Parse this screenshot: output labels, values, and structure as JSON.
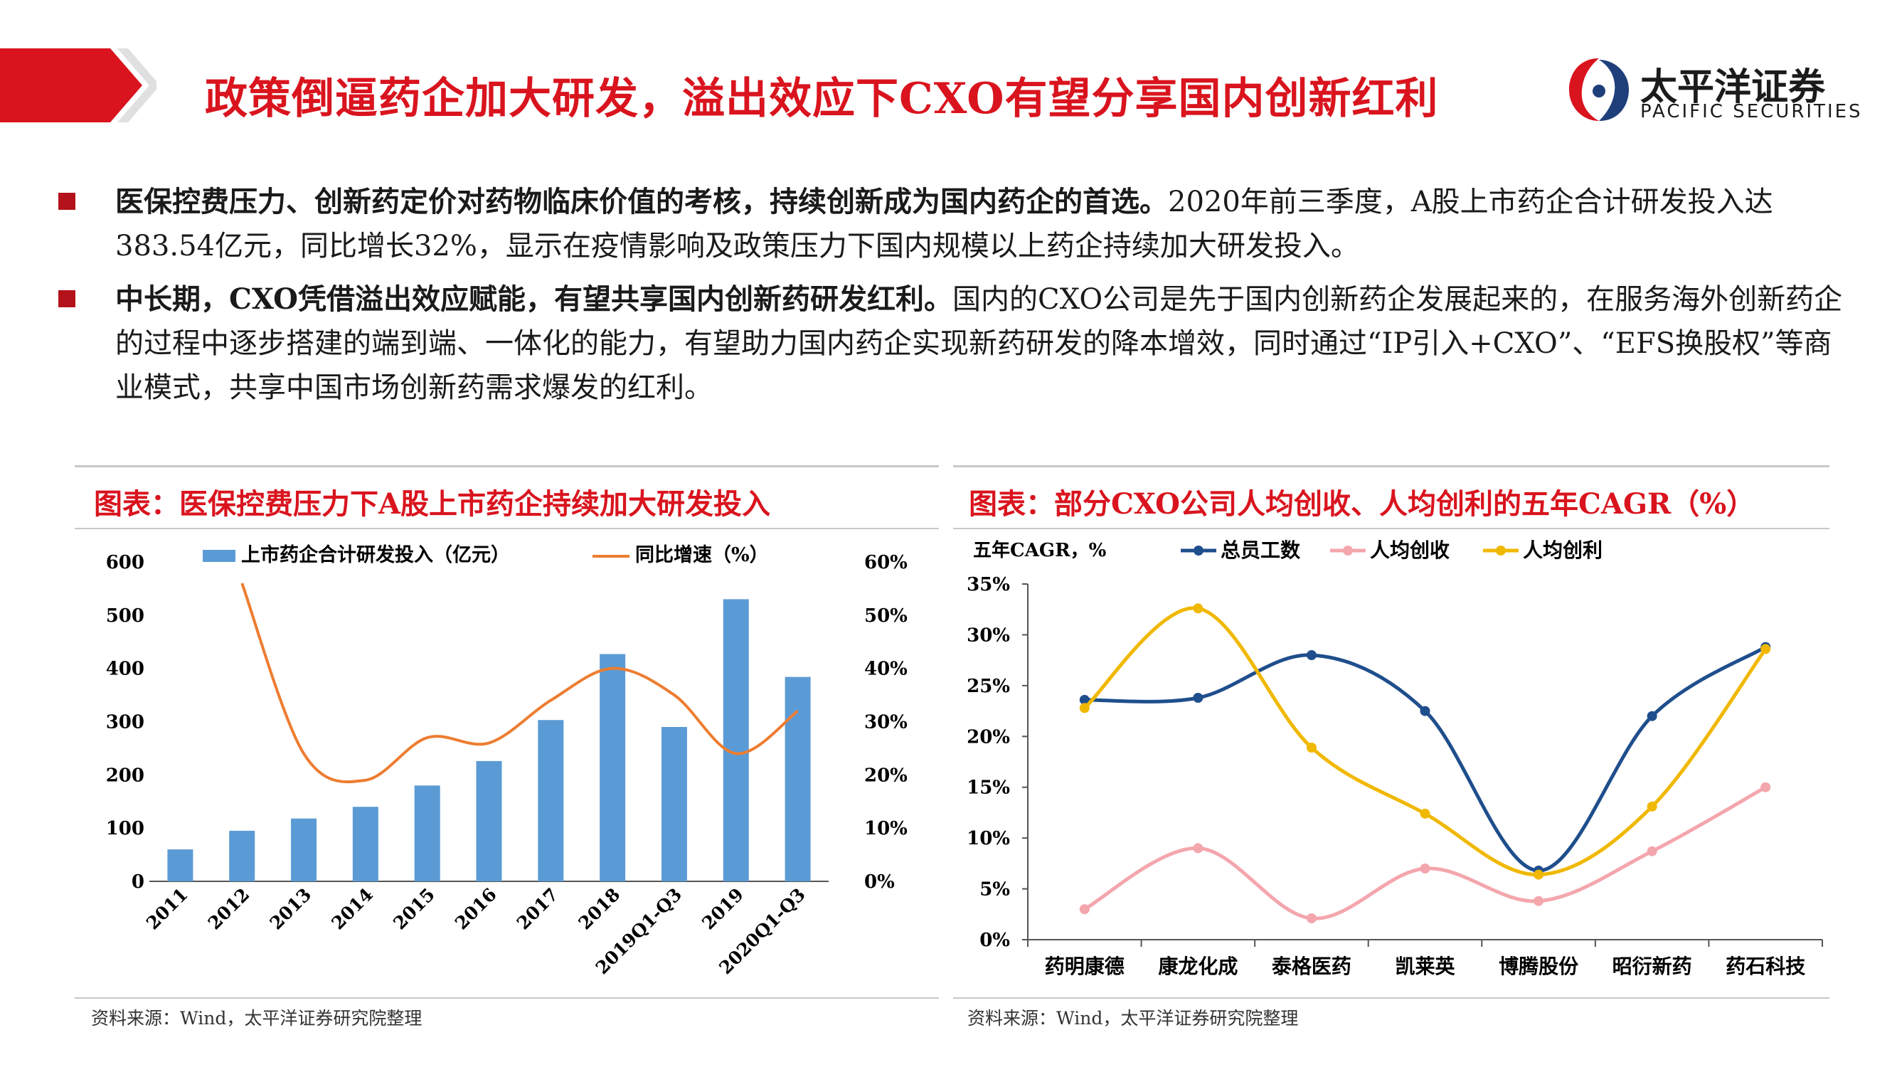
{
  "header": {
    "title": "政策倒逼药企加大研发，溢出效应下CXO有望分享国内创新红利",
    "logo_cn": "太平洋证券",
    "logo_en": "PACIFIC SECURITIES",
    "accent": "#d9141e"
  },
  "bullets": [
    {
      "bold": "医保控费压力、创新药定价对药物临床价值的考核，持续创新成为国内药企的首选。",
      "text": "2020年前三季度，A股上市药企合计研发投入达383.54亿元，同比增长32%，显示在疫情影响及政策压力下国内规模以上药企持续加大研发投入。"
    },
    {
      "bold": "中长期，CXO凭借溢出效应赋能，有望共享国内创新药研发红利。",
      "text": "国内的CXO公司是先于国内创新药企发展起来的，在服务海外创新药企的过程中逐步搭建的端到端、一体化的能力，有望助力国内药企实现新药研发的降本增效，同时通过“IP引入+CXO”、“EFS换股权”等商业模式，共享中国市场创新药需求爆发的红利。"
    }
  ],
  "left_chart": {
    "title": "图表：医保控费压力下A股上市药企持续加大研发投入",
    "source": "资料来源：Wind，太平洋证券研究院整理"
  },
  "right_chart": {
    "title": "图表：部分CXO公司人均创收、人均创利的五年CAGR（%）",
    "source": "资料来源：Wind，太平洋证券研究院整理"
  },
  "chart_data": [
    {
      "type": "bar",
      "categories": [
        "2011",
        "2012",
        "2013",
        "2014",
        "2015",
        "2016",
        "2017",
        "2018",
        "2019Q1-Q3",
        "2019",
        "2020Q1-Q3"
      ],
      "series": [
        {
          "name": "上市药企合计研发投入（亿元）",
          "type": "bar",
          "axis": "left",
          "color": "#5b9bd5",
          "values": [
            60,
            95,
            118,
            140,
            180,
            226,
            303,
            427,
            290,
            530,
            384
          ]
        },
        {
          "name": "同比增速（%）",
          "type": "line",
          "axis": "right",
          "color": "#ed7d31",
          "values": [
            null,
            56,
            24,
            19,
            27,
            26,
            34,
            40,
            35,
            24,
            32
          ]
        }
      ],
      "ylim": [
        0,
        600
      ],
      "yticks": [
        "0",
        "100",
        "200",
        "300",
        "400",
        "500",
        "600"
      ],
      "y2lim": [
        0,
        60
      ],
      "y2ticks": [
        "0%",
        "10%",
        "20%",
        "30%",
        "40%",
        "50%",
        "60%"
      ],
      "legend": "top"
    },
    {
      "type": "line",
      "categories": [
        "药明康德",
        "康龙化成",
        "泰格医药",
        "凯莱英",
        "博腾股份",
        "昭衍新药",
        "药石科技"
      ],
      "ylabel": "五年CAGR，%",
      "ylim": [
        0,
        35
      ],
      "yticks": [
        "0%",
        "5%",
        "10%",
        "15%",
        "20%",
        "25%",
        "30%",
        "35%"
      ],
      "series": [
        {
          "name": "总员工数",
          "color": "#1f4e8c",
          "values": [
            23.6,
            23.8,
            28.0,
            22.5,
            6.8,
            22.0,
            28.8
          ]
        },
        {
          "name": "人均创收",
          "color": "#f4a6ad",
          "values": [
            3.0,
            9.0,
            2.1,
            7.0,
            3.8,
            8.7,
            15.0
          ]
        },
        {
          "name": "人均创利",
          "color": "#f0b800",
          "values": [
            22.8,
            32.6,
            18.9,
            12.4,
            6.4,
            13.1,
            28.6
          ]
        }
      ],
      "legend": "top"
    }
  ]
}
